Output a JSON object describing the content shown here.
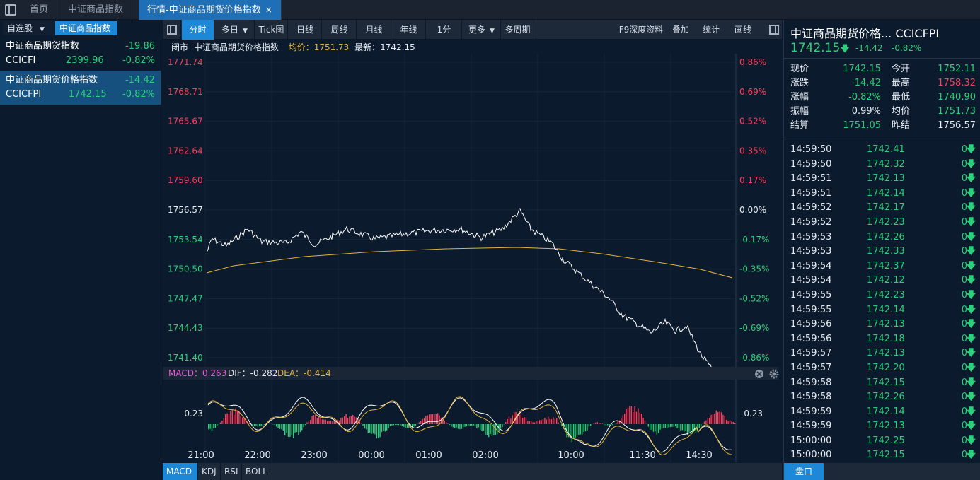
{
  "tabs": {
    "home": "首页",
    "ccindex": "中证商品指数",
    "active": "行情-中证商品期货价格指数",
    "close": "×"
  },
  "left": {
    "self_select": "自选股",
    "caret": "▼",
    "tab_active": "中证商品指数",
    "items": [
      {
        "name": "中证商品期货指数",
        "code": "CCICFI",
        "change": "-19.86",
        "price": "2399.96",
        "pct": "-0.82%"
      },
      {
        "name": "中证商品期货价格指数",
        "code": "CCICFPI",
        "change": "-14.42",
        "price": "1742.15",
        "pct": "-0.82%"
      }
    ]
  },
  "toolbar": {
    "buttons": [
      "分时",
      "多日",
      "Tick图",
      "日线",
      "周线",
      "月线",
      "年线",
      "1分",
      "更多",
      "多周期"
    ],
    "right_buttons": [
      "F9深度资料",
      "叠加",
      "统计",
      "画线"
    ],
    "caret": "▼"
  },
  "infobar": {
    "status": "闭市",
    "name": "中证商品期货价格指数",
    "avg": "均价：1751.73",
    "last": "最新：1742.15"
  },
  "price_axis": {
    "left": [
      "1771.74",
      "1768.71",
      "1765.67",
      "1762.64",
      "1759.60",
      "1756.57",
      "1753.54",
      "1750.50",
      "1747.47",
      "1744.43",
      "1741.40"
    ],
    "right": [
      "0.86%",
      "0.69%",
      "0.52%",
      "0.35%",
      "0.17%",
      "0.00%",
      "-0.17%",
      "-0.35%",
      "-0.52%",
      "-0.69%",
      "-0.86%"
    ]
  },
  "macd": {
    "macd_label": "MACD：0.263",
    "dif_label": "DIF：-0.282",
    "dea_label": "DEA：-0.414",
    "axis_left": "-0.23",
    "axis_right": "-0.23"
  },
  "time_axis": [
    "21:00",
    "22:00",
    "23:00",
    "00:00",
    "01:00",
    "02:00",
    "10:00",
    "11:30",
    "14:30"
  ],
  "bottom_tabs": [
    "MACD",
    "KDJ",
    "RSI",
    "BOLL"
  ],
  "right": {
    "title": "中证商品期货价格...  CCICFPI",
    "price": "1742.15",
    "price_arrow": "🡇",
    "change": "-14.42",
    "pct": "-0.82%",
    "quotes": [
      {
        "l1": "现价",
        "v1": "1742.15",
        "c1": "g",
        "l2": "今开",
        "v2": "1752.11",
        "c2": "g"
      },
      {
        "l1": "涨跌",
        "v1": "-14.42",
        "c1": "g",
        "l2": "最高",
        "v2": "1758.32",
        "c2": "rd"
      },
      {
        "l1": "涨幅",
        "v1": "-0.82%",
        "c1": "g",
        "l2": "最低",
        "v2": "1740.90",
        "c2": "g"
      },
      {
        "l1": "振幅",
        "v1": "0.99%",
        "c1": "w",
        "l2": "均价",
        "v2": "1751.73",
        "c2": "g"
      },
      {
        "l1": "结算",
        "v1": "1751.05",
        "c1": "g",
        "l2": "昨结",
        "v2": "1756.57",
        "c2": "w"
      }
    ],
    "ticks": [
      {
        "t": "14:59:50",
        "p": "1742.41",
        "v": "0"
      },
      {
        "t": "14:59:50",
        "p": "1742.32",
        "v": "0"
      },
      {
        "t": "14:59:51",
        "p": "1742.13",
        "v": "0"
      },
      {
        "t": "14:59:51",
        "p": "1742.14",
        "v": "0"
      },
      {
        "t": "14:59:52",
        "p": "1742.17",
        "v": "0"
      },
      {
        "t": "14:59:52",
        "p": "1742.23",
        "v": "0"
      },
      {
        "t": "14:59:53",
        "p": "1742.26",
        "v": "0"
      },
      {
        "t": "14:59:53",
        "p": "1742.33",
        "v": "0"
      },
      {
        "t": "14:59:54",
        "p": "1742.37",
        "v": "0"
      },
      {
        "t": "14:59:54",
        "p": "1742.12",
        "v": "0"
      },
      {
        "t": "14:59:55",
        "p": "1742.23",
        "v": "0"
      },
      {
        "t": "14:59:55",
        "p": "1742.14",
        "v": "0"
      },
      {
        "t": "14:59:56",
        "p": "1742.13",
        "v": "0"
      },
      {
        "t": "14:59:56",
        "p": "1742.18",
        "v": "0"
      },
      {
        "t": "14:59:57",
        "p": "1742.13",
        "v": "0"
      },
      {
        "t": "14:59:57",
        "p": "1742.20",
        "v": "0"
      },
      {
        "t": "14:59:58",
        "p": "1742.15",
        "v": "0"
      },
      {
        "t": "14:59:58",
        "p": "1742.26",
        "v": "0"
      },
      {
        "t": "14:59:59",
        "p": "1742.14",
        "v": "0"
      },
      {
        "t": "14:59:59",
        "p": "1742.13",
        "v": "0"
      },
      {
        "t": "15:00:00",
        "p": "1742.25",
        "v": "0"
      },
      {
        "t": "15:00:00",
        "p": "1742.15",
        "v": "0"
      }
    ],
    "tick_arrow": "🡇",
    "pankou": "盘口"
  },
  "colors": {
    "up": "#ff3d5c",
    "down": "#2ad17a",
    "avg_line": "#e4b33a",
    "price_line": "#ffffff",
    "accent": "#1e88d8"
  }
}
